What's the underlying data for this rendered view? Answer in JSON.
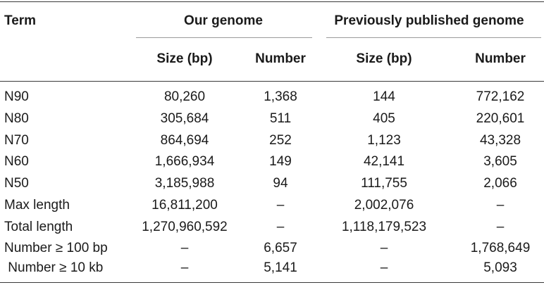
{
  "table": {
    "headers": {
      "term": "Term",
      "group1": "Our genome",
      "group2": "Previously published genome",
      "size": "Size (bp)",
      "number": "Number"
    },
    "rows": [
      {
        "term": "N90",
        "our_size": "80,260",
        "our_number": "1,368",
        "prev_size": "144",
        "prev_number": "772,162"
      },
      {
        "term": "N80",
        "our_size": "305,684",
        "our_number": "511",
        "prev_size": "405",
        "prev_number": "220,601"
      },
      {
        "term": "N70",
        "our_size": "864,694",
        "our_number": "252",
        "prev_size": "1,123",
        "prev_number": "43,328"
      },
      {
        "term": "N60",
        "our_size": "1,666,934",
        "our_number": "149",
        "prev_size": "42,141",
        "prev_number": "3,605"
      },
      {
        "term": "N50",
        "our_size": "3,185,988",
        "our_number": "94",
        "prev_size": "111,755",
        "prev_number": "2,066"
      },
      {
        "term": "Max length",
        "our_size": "16,811,200",
        "our_number": "–",
        "prev_size": "2,002,076",
        "prev_number": "–"
      },
      {
        "term": "Total length",
        "our_size": "1,270,960,592",
        "our_number": "–",
        "prev_size": "1,118,179,523",
        "prev_number": "–"
      },
      {
        "term": "Number ≥ 100 bp",
        "our_size": "–",
        "our_number": "6,657",
        "prev_size": "–",
        "prev_number": "1,768,649"
      },
      {
        "term": " Number ≥ 10 kb",
        "our_size": "–",
        "our_number": "5,141",
        "prev_size": "–",
        "prev_number": "5,093"
      }
    ]
  }
}
